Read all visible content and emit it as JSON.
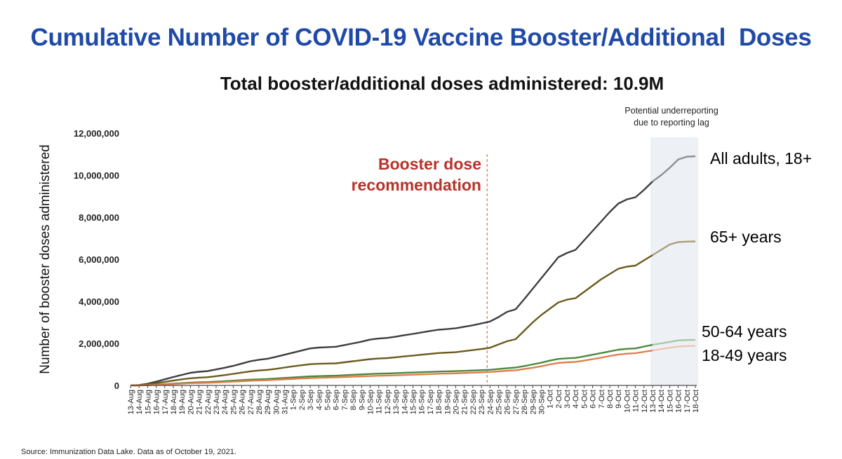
{
  "chart_data": {
    "type": "line",
    "title": "Cumulative Number of COVID-19 Vaccine Booster/Additional  Doses",
    "subtitle": "Total booster/additional doses administered: 10.9M",
    "ylabel": "Number of booster doses administered",
    "xlabel": "",
    "ylim": [
      0,
      12000000
    ],
    "yticks": [
      0,
      2000000,
      4000000,
      6000000,
      8000000,
      10000000,
      12000000
    ],
    "ytick_labels": [
      "0",
      "2,000,000",
      "4,000,000",
      "6,000,000",
      "8,000,000",
      "10,000,000",
      "12,000,000"
    ],
    "categories": [
      "13-Aug",
      "14-Aug",
      "15-Aug",
      "16-Aug",
      "17-Aug",
      "18-Aug",
      "19-Aug",
      "20-Aug",
      "21-Aug",
      "22-Aug",
      "23-Aug",
      "24-Aug",
      "25-Aug",
      "26-Aug",
      "27-Aug",
      "28-Aug",
      "29-Aug",
      "30-Aug",
      "31-Aug",
      "1-Sep",
      "2-Sep",
      "3-Sep",
      "4-Sep",
      "5-Sep",
      "6-Sep",
      "7-Sep",
      "8-Sep",
      "9-Sep",
      "10-Sep",
      "11-Sep",
      "12-Sep",
      "13-Sep",
      "14-Sep",
      "15-Sep",
      "16-Sep",
      "17-Sep",
      "18-Sep",
      "19-Sep",
      "20-Sep",
      "21-Sep",
      "22-Sep",
      "23-Sep",
      "24-Sep",
      "25-Sep",
      "26-Sep",
      "27-Sep",
      "28-Sep",
      "29-Sep",
      "30-Sep",
      "1-Oct",
      "2-Oct",
      "3-Oct",
      "4-Oct",
      "5-Oct",
      "6-Oct",
      "7-Oct",
      "8-Oct",
      "9-Oct",
      "10-Oct",
      "11-Oct",
      "12-Oct",
      "13-Oct",
      "14-Oct",
      "15-Oct",
      "16-Oct",
      "17-Oct",
      "18-Oct"
    ],
    "series": [
      {
        "name": "All adults, 18+",
        "color": "#3d3d42",
        "lag_color": "#8c9097",
        "values": [
          0,
          20000,
          80000,
          180000,
          290000,
          400000,
          500000,
          600000,
          650000,
          680000,
          760000,
          840000,
          930000,
          1040000,
          1150000,
          1220000,
          1270000,
          1360000,
          1460000,
          1560000,
          1660000,
          1760000,
          1800000,
          1820000,
          1840000,
          1920000,
          2000000,
          2080000,
          2180000,
          2230000,
          2260000,
          2320000,
          2390000,
          2450000,
          2520000,
          2590000,
          2650000,
          2680000,
          2720000,
          2790000,
          2860000,
          2950000,
          3040000,
          3250000,
          3500000,
          3620000,
          4100000,
          4600000,
          5100000,
          5600000,
          6100000,
          6300000,
          6450000,
          6900000,
          7350000,
          7800000,
          8250000,
          8650000,
          8850000,
          8950000,
          9300000,
          9700000,
          10000000,
          10350000,
          10750000,
          10880000,
          10900000
        ]
      },
      {
        "name": "65+ years",
        "color": "#6b5a1e",
        "lag_color": "#a5a07a",
        "values": [
          0,
          15000,
          50000,
          110000,
          170000,
          230000,
          290000,
          340000,
          370000,
          390000,
          440000,
          490000,
          550000,
          610000,
          670000,
          710000,
          740000,
          790000,
          850000,
          910000,
          960000,
          1010000,
          1030000,
          1040000,
          1050000,
          1100000,
          1150000,
          1200000,
          1250000,
          1280000,
          1300000,
          1340000,
          1380000,
          1420000,
          1460000,
          1500000,
          1540000,
          1560000,
          1580000,
          1630000,
          1680000,
          1730000,
          1790000,
          1950000,
          2100000,
          2200000,
          2600000,
          3000000,
          3350000,
          3650000,
          3950000,
          4080000,
          4150000,
          4450000,
          4750000,
          5050000,
          5300000,
          5550000,
          5650000,
          5700000,
          5950000,
          6200000,
          6450000,
          6700000,
          6820000,
          6840000,
          6850000
        ]
      },
      {
        "name": "50-64 years",
        "color": "#4b8a3c",
        "lag_color": "#a8c6a2",
        "values": [
          0,
          4000,
          15000,
          40000,
          60000,
          85000,
          110000,
          135000,
          150000,
          160000,
          180000,
          200000,
          225000,
          250000,
          275000,
          290000,
          305000,
          330000,
          355000,
          380000,
          405000,
          430000,
          445000,
          455000,
          465000,
          485000,
          505000,
          525000,
          545000,
          560000,
          570000,
          585000,
          600000,
          615000,
          630000,
          645000,
          660000,
          670000,
          680000,
          695000,
          710000,
          725000,
          745000,
          780000,
          820000,
          850000,
          920000,
          1000000,
          1080000,
          1180000,
          1260000,
          1290000,
          1310000,
          1380000,
          1460000,
          1540000,
          1620000,
          1700000,
          1740000,
          1760000,
          1850000,
          1930000,
          2000000,
          2070000,
          2140000,
          2160000,
          2170000
        ]
      },
      {
        "name": "18-49 years",
        "color": "#e07e4c",
        "lag_color": "#efc6ae",
        "values": [
          0,
          3000,
          12000,
          30000,
          45000,
          65000,
          85000,
          105000,
          115000,
          125000,
          140000,
          160000,
          180000,
          200000,
          220000,
          235000,
          250000,
          270000,
          290000,
          310000,
          330000,
          350000,
          365000,
          375000,
          385000,
          400000,
          415000,
          430000,
          445000,
          460000,
          470000,
          480000,
          495000,
          510000,
          525000,
          540000,
          555000,
          565000,
          575000,
          590000,
          605000,
          620000,
          640000,
          670000,
          700000,
          720000,
          780000,
          840000,
          910000,
          1000000,
          1070000,
          1100000,
          1120000,
          1180000,
          1250000,
          1320000,
          1400000,
          1470000,
          1510000,
          1530000,
          1600000,
          1660000,
          1730000,
          1790000,
          1850000,
          1870000,
          1880000
        ]
      }
    ],
    "annotations": {
      "booster_line": {
        "date": "24-Sep",
        "text_lines": [
          "Booster dose",
          "recommendation"
        ]
      },
      "lag_region": {
        "start": "13-Oct",
        "end": "18-Oct",
        "text_lines": [
          "Potential underreporting",
          "due to reporting lag"
        ]
      }
    }
  },
  "source_note": "Source: Immunization Data Lake. Data as of October 19, 2021.",
  "colors": {
    "title": "#1f4aa8",
    "annotation": "#b8322a",
    "lag_fill": "#edf1f6",
    "axis": "#222222"
  }
}
